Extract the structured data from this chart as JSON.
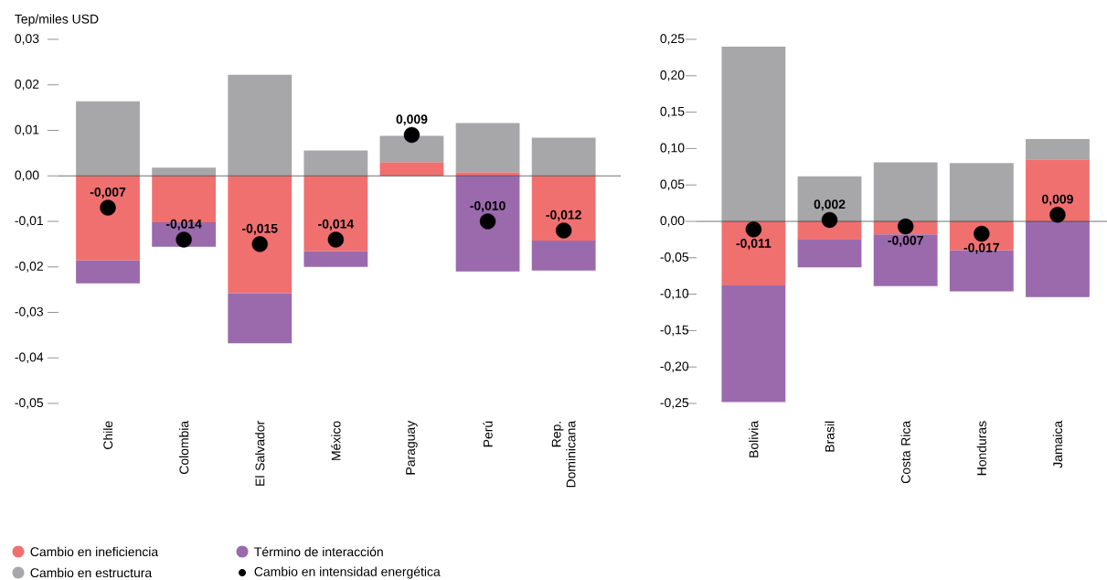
{
  "chart_data": [
    {
      "type": "bar",
      "stacked": true,
      "ylabel": "Tep/miles USD",
      "legend": "bottom left",
      "categories": [
        "Chile",
        "Colombia",
        "El Salvador",
        "México",
        "Paraguay",
        "Perú",
        "Rep. Dominicana"
      ],
      "ylim": [
        -0.05,
        0.03
      ],
      "yticks": [
        {
          "value": -0.05,
          "label": "-0,05"
        },
        {
          "value": -0.04,
          "label": "-0,04"
        },
        {
          "value": -0.03,
          "label": "-0,03"
        },
        {
          "value": -0.02,
          "label": "-0,02"
        },
        {
          "value": -0.01,
          "label": "-0,01"
        },
        {
          "value": 0,
          "label": "0,00"
        },
        {
          "value": 0.01,
          "label": "0,01"
        },
        {
          "value": 0.02,
          "label": "0,02"
        },
        {
          "value": 0.03,
          "label": "0,03"
        }
      ],
      "ref_lines": [
        {
          "axis": "y",
          "value": 0,
          "color": "#333333"
        }
      ],
      "series": [
        {
          "name": "Cambio en ineficiencia",
          "color": "#f07070",
          "values": [
            -0.0186,
            -0.0102,
            -0.0258,
            -0.0166,
            0.003,
            0.0008,
            -0.0142
          ]
        },
        {
          "name": "Cambio en estructura",
          "color": "#a7a7a9",
          "values": [
            0.0164,
            0.0018,
            0.0222,
            0.0056,
            0.0058,
            0.0108,
            0.0084
          ]
        },
        {
          "name": "Término de interacción",
          "color": "#9a6aad",
          "values": [
            -0.005,
            -0.0054,
            -0.011,
            -0.0034,
            null,
            -0.021,
            -0.0066
          ]
        },
        {
          "name": "Cambio en intensidad energética",
          "type": "scatter",
          "color": "#000000",
          "x": [
            "Chile",
            "Colombia",
            "El Salvador",
            "México",
            "Paraguay",
            "Perú",
            "Rep. Dominicana"
          ],
          "values": [
            -0.007,
            -0.014,
            -0.015,
            -0.014,
            0.009,
            -0.01,
            -0.012
          ],
          "value_labels": [
            "-0,007",
            "-0,014",
            "-0,015",
            "-0,014",
            "0,009",
            "-0,010",
            "-0,012"
          ]
        }
      ]
    },
    {
      "type": "bar",
      "stacked": true,
      "categories": [
        "Bolivia",
        "Brasil",
        "Costa Rica",
        "Honduras",
        "Jamaica"
      ],
      "ylim": [
        -0.25,
        0.25
      ],
      "yticks": [
        {
          "value": -0.25,
          "label": "-0,25"
        },
        {
          "value": -0.2,
          "label": "-0,20"
        },
        {
          "value": -0.15,
          "label": "-0,15"
        },
        {
          "value": -0.1,
          "label": "-0,10"
        },
        {
          "value": -0.05,
          "label": "-0,05"
        },
        {
          "value": 0,
          "label": "0,00"
        },
        {
          "value": 0.05,
          "label": "0,05"
        },
        {
          "value": 0.1,
          "label": "0,10"
        },
        {
          "value": 0.15,
          "label": "0,15"
        },
        {
          "value": 0.2,
          "label": "0,20"
        },
        {
          "value": 0.25,
          "label": "0,25"
        }
      ],
      "ref_lines": [
        {
          "axis": "y",
          "value": 0,
          "color": "#333333"
        }
      ],
      "series": [
        {
          "color": "#f07070",
          "values": [
            -0.088,
            -0.025,
            -0.018,
            -0.04,
            0.085
          ]
        },
        {
          "color": "#a7a7a9",
          "values": [
            0.24,
            0.062,
            0.081,
            0.08,
            0.028
          ]
        },
        {
          "color": "#9a6aad",
          "values": [
            -0.16,
            -0.038,
            -0.071,
            -0.056,
            -0.104
          ]
        },
        {
          "type": "scatter",
          "color": "#000000",
          "x": [
            "Bolivia",
            "Brasil",
            "Costa Rica",
            "Honduras",
            "Jamaica"
          ],
          "values": [
            -0.011,
            0.002,
            -0.007,
            -0.017,
            0.009
          ],
          "value_labels": [
            "-0,011",
            "0,002",
            "-0,007",
            "-0,017",
            "0,009"
          ]
        }
      ]
    }
  ]
}
